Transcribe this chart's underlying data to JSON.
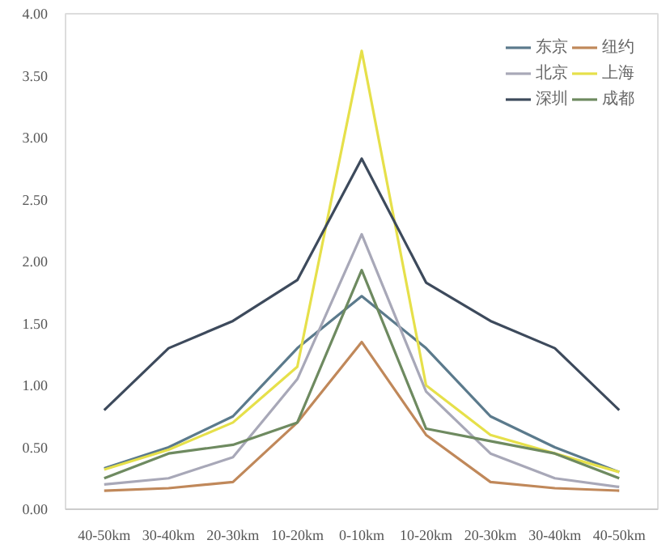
{
  "chart_data": {
    "type": "line",
    "categories": [
      "40-50km",
      "30-40km",
      "20-30km",
      "10-20km",
      "0-10km",
      "10-20km",
      "20-30km",
      "30-40km",
      "40-50km"
    ],
    "series": [
      {
        "name": "东京",
        "color": "#5b7a8c",
        "values": [
          0.33,
          0.5,
          0.75,
          1.3,
          1.72,
          1.3,
          0.75,
          0.5,
          0.3
        ]
      },
      {
        "name": "纽约",
        "color": "#c0885a",
        "values": [
          0.15,
          0.17,
          0.22,
          0.7,
          1.35,
          0.6,
          0.22,
          0.17,
          0.15
        ]
      },
      {
        "name": "北京",
        "color": "#a8a8b8",
        "values": [
          0.2,
          0.25,
          0.42,
          1.05,
          2.22,
          0.95,
          0.45,
          0.25,
          0.18
        ]
      },
      {
        "name": "上海",
        "color": "#e6e04a",
        "values": [
          0.32,
          0.48,
          0.7,
          1.15,
          3.7,
          1.0,
          0.6,
          0.45,
          0.3
        ]
      },
      {
        "name": "深圳",
        "color": "#3d4a5c",
        "values": [
          0.8,
          1.3,
          1.52,
          1.85,
          2.83,
          1.83,
          1.52,
          1.3,
          0.8
        ]
      },
      {
        "name": "成都",
        "color": "#6e8a60",
        "values": [
          0.25,
          0.45,
          0.52,
          0.7,
          1.93,
          0.65,
          0.55,
          0.45,
          0.25
        ]
      }
    ],
    "ylim": [
      0,
      4
    ],
    "yticks": [
      {
        "value": 0,
        "label": "0.00"
      },
      {
        "value": 0.5,
        "label": "0.50"
      },
      {
        "value": 1,
        "label": "1.00"
      },
      {
        "value": 1.5,
        "label": "1.50"
      },
      {
        "value": 2,
        "label": "2.00"
      },
      {
        "value": 2.5,
        "label": "2.50"
      },
      {
        "value": 3,
        "label": "3.00"
      },
      {
        "value": 3.5,
        "label": "3.50"
      },
      {
        "value": 4,
        "label": "4.00"
      }
    ],
    "legend": "top right",
    "marker": "none"
  }
}
